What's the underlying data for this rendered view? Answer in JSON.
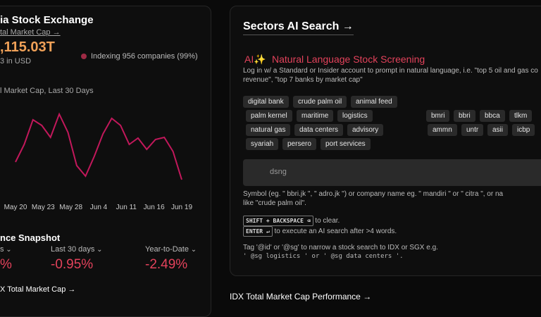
{
  "left_panel": {
    "title": "ia Stock Exchange",
    "market_cap_link": "tal Market Cap →",
    "market_cap_value": ",115.03T",
    "currency_note": "3 in USD",
    "indexing": "Indexing 956 companies (99%)",
    "chart": {
      "title": "l Market Cap, Last 30 Days",
      "x_labels": [
        "May 20",
        "May 23",
        "May 28",
        "Jun 4",
        "Jun 11",
        "Jun 16",
        "Jun 19"
      ],
      "values": [
        70,
        95,
        130,
        122,
        105,
        138,
        112,
        65,
        50,
        78,
        110,
        132,
        122,
        95,
        104,
        88,
        102,
        105,
        85,
        45
      ],
      "color": "#c2185b"
    },
    "snapshot": {
      "title": "nce Snapshot",
      "columns": [
        {
          "label": "s",
          "value": "%"
        },
        {
          "label": "Last 30 days",
          "value": "-0.95%"
        },
        {
          "label": "Year-to-Date",
          "value": "-2.49%"
        }
      ]
    },
    "footer_link": "X Total Market Cap →"
  },
  "right_panel": {
    "title": "Sectors AI Search →",
    "heading_prefix": "AI✨",
    "heading": "Natural Language Stock Screening",
    "description": [
      "Log in w/ a Standard or Insider account to prompt in natural language, i.e. \"top 5 oil and gas co",
      "revenue\", \"top 7 banks by market cap\""
    ],
    "sector_chips": [
      [
        "digital bank",
        "crude palm oil",
        "animal feed"
      ],
      [
        "palm kernel",
        "maritime",
        "logistics"
      ],
      [
        "natural gas",
        "data centers",
        "advisory"
      ],
      [
        "syariah",
        "persero",
        "port services"
      ]
    ],
    "ticker_chips": [
      [
        "bmri",
        "bbri",
        "bbca",
        "tlkm"
      ],
      [
        "ammn",
        "untr",
        "asii",
        "icbp"
      ]
    ],
    "search_placeholder": "dsng",
    "symbol_help": [
      "Symbol (eg. \" bbri.jk \", \" adro.jk \") or company name eg. \" mandiri \" or \" citra \", or na",
      "like \"crude palm oil\"."
    ],
    "shortcuts": [
      {
        "key": "SHIFT + BACKSPACE ⌫",
        "text": "to clear."
      },
      {
        "key": "ENTER ↵",
        "text": "to execute an AI search after >4 words."
      }
    ],
    "tag_help": [
      "Tag '@id' or '@sg' to narrow a stock search to IDX or SGX e.g.",
      "' @sg logistics ' or ' @sg data centers '."
    ]
  },
  "bottom_link": "IDX Total Market Cap Performance →"
}
